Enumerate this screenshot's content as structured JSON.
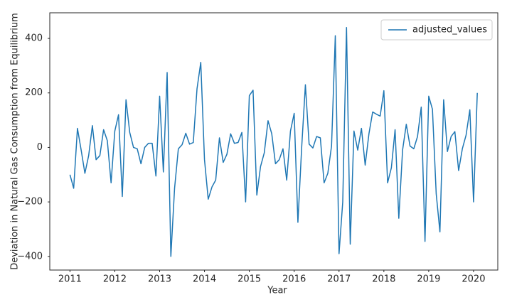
{
  "chart_data": {
    "type": "line",
    "xlabel": "Year",
    "ylabel": "Deviation in Natural Gas Consumption from Equilibrium",
    "x": [
      2011,
      2011.083,
      2011.167,
      2011.25,
      2011.333,
      2011.417,
      2011.5,
      2011.583,
      2011.667,
      2011.75,
      2011.833,
      2011.917,
      2012,
      2012.083,
      2012.167,
      2012.25,
      2012.333,
      2012.417,
      2012.5,
      2012.583,
      2012.667,
      2012.75,
      2012.833,
      2012.917,
      2013,
      2013.083,
      2013.167,
      2013.25,
      2013.333,
      2013.417,
      2013.5,
      2013.583,
      2013.667,
      2013.75,
      2013.833,
      2013.917,
      2014,
      2014.083,
      2014.167,
      2014.25,
      2014.333,
      2014.417,
      2014.5,
      2014.583,
      2014.667,
      2014.75,
      2014.833,
      2014.917,
      2015,
      2015.083,
      2015.167,
      2015.25,
      2015.333,
      2015.417,
      2015.5,
      2015.583,
      2015.667,
      2015.75,
      2015.833,
      2015.917,
      2016,
      2016.083,
      2016.167,
      2016.25,
      2016.333,
      2016.417,
      2016.5,
      2016.583,
      2016.667,
      2016.75,
      2016.833,
      2016.917,
      2017,
      2017.083,
      2017.167,
      2017.25,
      2017.333,
      2017.417,
      2017.5,
      2017.583,
      2017.667,
      2017.75,
      2017.833,
      2017.917,
      2018,
      2018.083,
      2018.167,
      2018.25,
      2018.333,
      2018.417,
      2018.5,
      2018.583,
      2018.667,
      2018.75,
      2018.833,
      2018.917,
      2019,
      2019.083,
      2019.167,
      2019.25,
      2019.333,
      2019.417,
      2019.5,
      2019.583,
      2019.667,
      2019.75,
      2019.833,
      2019.917,
      2020,
      2020.083
    ],
    "series": [
      {
        "name": "adjusted_values",
        "color": "#1f77b4",
        "values": [
          -100,
          -150,
          70,
          -10,
          -95,
          -30,
          80,
          -45,
          -30,
          65,
          25,
          -130,
          60,
          120,
          -180,
          175,
          55,
          0,
          -5,
          -60,
          0,
          15,
          15,
          -105,
          188,
          -90,
          275,
          -400,
          -150,
          -5,
          10,
          52,
          12,
          18,
          215,
          312,
          -45,
          -190,
          -145,
          -120,
          35,
          -55,
          -25,
          50,
          15,
          18,
          55,
          -200,
          190,
          210,
          -175,
          -70,
          -20,
          98,
          50,
          -60,
          -45,
          -5,
          -120,
          60,
          125,
          -275,
          0,
          230,
          12,
          -2,
          40,
          35,
          -130,
          -95,
          5,
          410,
          -390,
          -200,
          440,
          -355,
          60,
          -10,
          70,
          -65,
          50,
          130,
          122,
          115,
          208,
          -130,
          -75,
          65,
          -260,
          -10,
          85,
          5,
          -5,
          40,
          148,
          -345,
          188,
          140,
          -170,
          -310,
          175,
          -15,
          40,
          58,
          -85,
          -5,
          45,
          138,
          -200,
          200
        ]
      }
    ],
    "xlim": [
      2010.55,
      2020.54
    ],
    "xticks": [
      2011,
      2012,
      2013,
      2014,
      2015,
      2016,
      2017,
      2018,
      2019,
      2020
    ],
    "ylim": [
      -450,
      494
    ],
    "yticks": [
      {
        "value": -400,
        "label": "−400"
      },
      {
        "value": -200,
        "label": "−200"
      },
      0,
      200,
      400
    ],
    "grid": false,
    "legend": "upper right"
  }
}
